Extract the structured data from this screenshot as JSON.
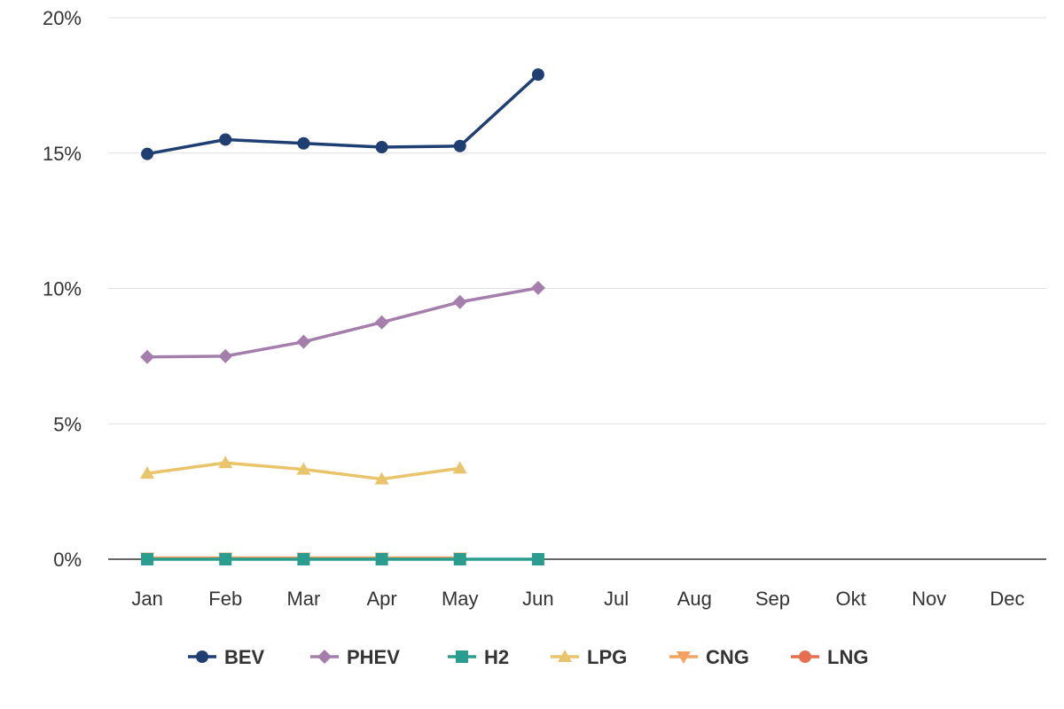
{
  "chart_data": {
    "type": "line",
    "categories": [
      "Jan",
      "Feb",
      "Mar",
      "Apr",
      "May",
      "Jun",
      "Jul",
      "Aug",
      "Sep",
      "Okt",
      "Nov",
      "Dec"
    ],
    "y_ticks": [
      "0%",
      "5%",
      "10%",
      "15%",
      "20%"
    ],
    "ylim": [
      0,
      20
    ],
    "y_unit": "%",
    "grid": true,
    "legend_position": "bottom",
    "series": [
      {
        "name": "BEV",
        "color": "#1f3f73",
        "marker": "circle",
        "values": [
          14.97,
          15.5,
          15.36,
          15.22,
          15.26,
          17.9,
          null,
          null,
          null,
          null,
          null,
          null
        ]
      },
      {
        "name": "PHEV",
        "color": "#a57fab",
        "marker": "diamond",
        "values": [
          7.47,
          7.5,
          8.03,
          8.75,
          9.5,
          10.02,
          null,
          null,
          null,
          null,
          null,
          null
        ]
      },
      {
        "name": "H2",
        "color": "#2a9d8f",
        "marker": "square",
        "values": [
          0.0,
          0.0,
          0.0,
          0.0,
          0.0,
          0.0,
          null,
          null,
          null,
          null,
          null,
          null
        ]
      },
      {
        "name": "LPG",
        "color": "#e9c46a",
        "marker": "triangle-up",
        "values": [
          3.17,
          3.56,
          3.32,
          2.96,
          3.36,
          null,
          null,
          null,
          null,
          null,
          null,
          null
        ]
      },
      {
        "name": "CNG",
        "color": "#f4a261",
        "marker": "triangle-down",
        "values": [
          0.05,
          0.05,
          0.05,
          0.05,
          0.05,
          null,
          null,
          null,
          null,
          null,
          null,
          null
        ]
      },
      {
        "name": "LNG",
        "color": "#e76f51",
        "marker": "circle",
        "values": [
          null,
          null,
          null,
          null,
          null,
          null,
          null,
          null,
          null,
          null,
          null,
          null
        ]
      }
    ]
  }
}
